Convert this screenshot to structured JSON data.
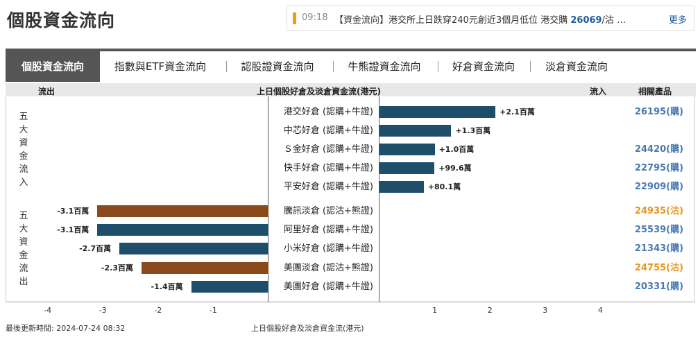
{
  "page_title": "個股資金流向",
  "news": {
    "time": "09:18",
    "text_prefix": "【資金流向】港交所上日跌穿240元創近3個月低位 港交購 ",
    "text_code": "26069",
    "text_suffix": "/沽 …",
    "more": "更多"
  },
  "tabs": [
    {
      "label": "個股資金流向",
      "active": true
    },
    {
      "label": "指數與ETF資金流向"
    },
    {
      "label": "認股證資金流向"
    },
    {
      "label": "牛熊證資金流向"
    },
    {
      "label": "好倉資金流向"
    },
    {
      "label": "淡倉資金流向"
    }
  ],
  "header": {
    "outflow": "流出",
    "title": "上日個股好倉及淡倉資金流(港元)",
    "inflow": "流入",
    "related": "相關產品"
  },
  "side_labels": {
    "inflow": [
      "五",
      "大",
      "資",
      "金",
      "流",
      "入"
    ],
    "outflow": [
      "五",
      "大",
      "資",
      "金",
      "流",
      "出"
    ]
  },
  "colors": {
    "long": "#1f4e6b",
    "short": "#8b4a1c",
    "call": "#4a7ab0",
    "put": "#e8961e"
  },
  "chart_data": {
    "type": "bar",
    "title": "上日個股好倉及淡倉資金流(港元)",
    "xlabel": "上日個股好倉及淡倉資金流(港元)",
    "unit": "百萬",
    "x_ticks": [
      "-4",
      "-3",
      "-2",
      "-1",
      "1",
      "2",
      "3",
      "4"
    ],
    "xlim": [
      -4.25,
      4.25
    ],
    "inflow": [
      {
        "name": "港交好倉 (認購+牛證)",
        "value": 2.1,
        "label": "+2.1百萬",
        "product": "26195(購)",
        "ptype": "call"
      },
      {
        "name": "中芯好倉 (認購+牛證)",
        "value": 1.3,
        "label": "+1.3百萬",
        "product": "",
        "ptype": "call"
      },
      {
        "name": "Ｓ金好倉 (認購+牛證)",
        "value": 1.0,
        "label": "+1.0百萬",
        "product": "24420(購)",
        "ptype": "call"
      },
      {
        "name": "快手好倉 (認購+牛證)",
        "value": 0.996,
        "label": "+99.6萬",
        "product": "22795(購)",
        "ptype": "call"
      },
      {
        "name": "平安好倉 (認購+牛證)",
        "value": 0.801,
        "label": "+80.1萬",
        "product": "22909(購)",
        "ptype": "call"
      }
    ],
    "outflow": [
      {
        "name": "騰訊淡倉 (認沽+熊證)",
        "value": -3.1,
        "label": "-3.1百萬",
        "product": "24935(沽)",
        "ptype": "put",
        "kind": "short"
      },
      {
        "name": "阿里好倉 (認購+牛證)",
        "value": -3.1,
        "label": "-3.1百萬",
        "product": "25539(購)",
        "ptype": "call",
        "kind": "long"
      },
      {
        "name": "小米好倉 (認購+牛證)",
        "value": -2.7,
        "label": "-2.7百萬",
        "product": "21343(購)",
        "ptype": "call",
        "kind": "long"
      },
      {
        "name": "美團淡倉 (認沽+熊證)",
        "value": -2.3,
        "label": "-2.3百萬",
        "product": "24755(沽)",
        "ptype": "put",
        "kind": "short"
      },
      {
        "name": "美團好倉 (認購+牛證)",
        "value": -1.4,
        "label": "-1.4百萬",
        "product": "20331(購)",
        "ptype": "call",
        "kind": "long"
      }
    ]
  },
  "footer": {
    "updated": "最後更新時間: 2024-07-24 08:32",
    "caption": "上日個股好倉及淡倉資金流(港元)"
  }
}
